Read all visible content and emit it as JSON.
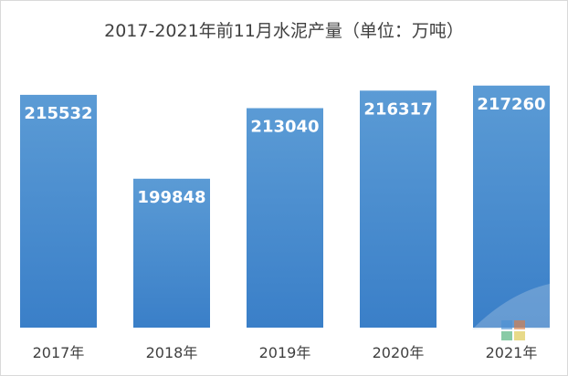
{
  "chart_data": {
    "type": "bar",
    "title": "2017-2021年前11月水泥产量（单位：万吨）",
    "categories": [
      "2017年",
      "2018年",
      "2019年",
      "2020年",
      "2021年"
    ],
    "values": [
      215532,
      199848,
      213040,
      216317,
      217260
    ],
    "ylim": [
      172000,
      222000
    ],
    "grid": false,
    "legend": "none",
    "data_labels": true,
    "colors": {
      "bar_top": "#5b9bd5",
      "bar_bottom": "#2e75b6",
      "label": "#ffffff",
      "text": "#404040"
    }
  }
}
